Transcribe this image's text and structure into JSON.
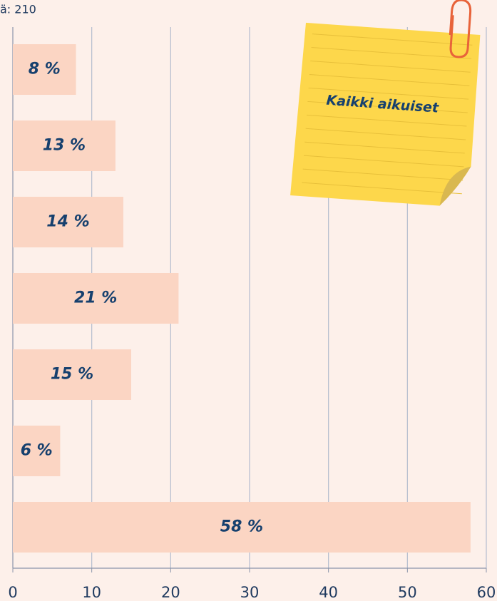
{
  "chart_data": {
    "type": "barh",
    "subtitle": "ä: 210",
    "annotation": "Kaikki aikuiset",
    "categories": [
      null,
      null,
      null,
      null,
      null,
      null,
      null
    ],
    "values": [
      8,
      13,
      14,
      21,
      15,
      6,
      58
    ],
    "value_labels": [
      "8 %",
      "13 %",
      "14 %",
      "21 %",
      "15 %",
      "6 %",
      "58 %"
    ],
    "color": "#fbd5c3",
    "xlim": [
      0,
      60
    ],
    "xticks": [
      0,
      10,
      20,
      30,
      40,
      50,
      60
    ],
    "grid": true
  }
}
